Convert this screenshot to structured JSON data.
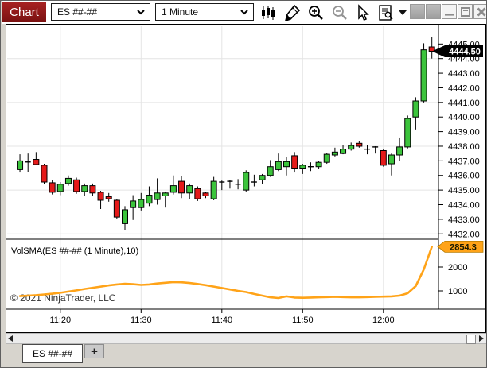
{
  "window": {
    "title_tab": "Chart"
  },
  "toolbar": {
    "instrument": "ES ##-##",
    "interval": "1 Minute",
    "icons": [
      "chart-style-icon",
      "draw-pencil-icon",
      "zoom-in-icon",
      "zoom-out-icon",
      "cursor-icon",
      "data-series-icon",
      "dropdown-caret-icon"
    ],
    "window_buttons": [
      "instrument-link-button",
      "interval-link-button",
      "minimize-button",
      "restore-button",
      "close-button"
    ]
  },
  "tabs": {
    "instrument_tab": "ES ##-##",
    "add_tab": "+"
  },
  "chart_data": {
    "type": "candlestick",
    "watermark": "© 2021 NinjaTrader, LLC",
    "x_axis": {
      "ticks": [
        {
          "label": "11:20",
          "bar": 5
        },
        {
          "label": "11:30",
          "bar": 15
        },
        {
          "label": "11:40",
          "bar": 25
        },
        {
          "label": "11:50",
          "bar": 35
        },
        {
          "label": "12:00",
          "bar": 45
        }
      ]
    },
    "panels": [
      {
        "id": "price",
        "kind": "candlestick",
        "up_color": "#3CC43C",
        "down_color": "#E51A1A",
        "current_price": 4444.5,
        "current_price_label": "4444.50",
        "y_axis": {
          "labels": [
            "4445.00",
            "4444.00",
            "4443.00",
            "4442.00",
            "4441.00",
            "4440.00",
            "4439.00",
            "4438.00",
            "4437.00",
            "4436.00",
            "4435.00",
            "4434.00",
            "4433.00",
            "4432.00"
          ],
          "grid_prices": [
            4444,
            4441,
            4438,
            4435,
            4432
          ]
        },
        "candles": [
          [
            4436.4,
            4437.45,
            4436.2,
            4437.0
          ],
          [
            4436.95,
            4437.5,
            4436.25,
            4436.9
          ],
          [
            4437.1,
            4437.6,
            4436.7,
            4436.75
          ],
          [
            4436.7,
            4436.8,
            4435.4,
            4435.55
          ],
          [
            4435.5,
            4435.7,
            4434.7,
            4434.85
          ],
          [
            4434.9,
            4435.55,
            4434.65,
            4435.4
          ],
          [
            4435.45,
            4436.0,
            4435.3,
            4435.8
          ],
          [
            4435.7,
            4435.85,
            4434.75,
            4434.9
          ],
          [
            4434.9,
            4435.45,
            4434.6,
            4435.3
          ],
          [
            4435.3,
            4435.45,
            4434.6,
            4434.8
          ],
          [
            4434.85,
            4434.95,
            4433.7,
            4434.3
          ],
          [
            4434.55,
            4434.8,
            4434.2,
            4434.4
          ],
          [
            4434.3,
            4434.4,
            4433.0,
            4433.15
          ],
          [
            4432.7,
            4433.9,
            4432.25,
            4433.65
          ],
          [
            4433.8,
            4434.65,
            4432.95,
            4434.25
          ],
          [
            4433.8,
            4434.8,
            4433.6,
            4434.35
          ],
          [
            4434.1,
            4435.25,
            4433.9,
            4434.65
          ],
          [
            4434.35,
            4435.8,
            4434.0,
            4434.8
          ],
          [
            4434.6,
            4434.9,
            4433.8,
            4434.8
          ],
          [
            4434.85,
            4436.0,
            4434.7,
            4435.3
          ],
          [
            4435.6,
            4435.95,
            4434.45,
            4434.8
          ],
          [
            4434.8,
            4435.45,
            4434.4,
            4435.3
          ],
          [
            4435.1,
            4435.25,
            4434.25,
            4434.4
          ],
          [
            4434.8,
            4434.9,
            4434.45,
            4434.6
          ],
          [
            4434.4,
            4435.9,
            4434.3,
            4435.6
          ],
          [
            4435.55,
            4435.65,
            4435.0,
            4435.55
          ],
          [
            4435.6,
            4435.7,
            4435.1,
            4435.6
          ],
          [
            4435.4,
            4435.75,
            4435.05,
            4435.4
          ],
          [
            4435.0,
            4436.35,
            4434.9,
            4436.2
          ],
          [
            4435.55,
            4436.05,
            4435.25,
            4435.55
          ],
          [
            4435.7,
            4436.1,
            4435.4,
            4436.0
          ],
          [
            4436.0,
            4437.05,
            4435.9,
            4436.6
          ],
          [
            4436.4,
            4437.5,
            4436.3,
            4436.95
          ],
          [
            4436.6,
            4437.25,
            4436.0,
            4436.95
          ],
          [
            4437.35,
            4437.6,
            4436.2,
            4436.5
          ],
          [
            4436.5,
            4436.8,
            4436.1,
            4436.7
          ],
          [
            4436.6,
            4436.9,
            4436.3,
            4436.6
          ],
          [
            4436.6,
            4437.0,
            4436.45,
            4436.9
          ],
          [
            4436.9,
            4437.55,
            4436.8,
            4437.45
          ],
          [
            4437.4,
            4437.9,
            4437.3,
            4437.6
          ],
          [
            4437.5,
            4438.1,
            4437.45,
            4437.8
          ],
          [
            4437.8,
            4438.25,
            4437.7,
            4438.05
          ],
          [
            4438.2,
            4438.35,
            4437.9,
            4438.0
          ],
          [
            4437.8,
            4438.1,
            4437.45,
            4437.8
          ],
          [
            4437.95,
            4438.0,
            4437.5,
            4437.95
          ],
          [
            4437.7,
            4437.8,
            4436.6,
            4436.7
          ],
          [
            4436.8,
            4437.5,
            4436.0,
            4437.4
          ],
          [
            4437.4,
            4438.6,
            4437.0,
            4437.95
          ],
          [
            4437.95,
            4440.1,
            4437.85,
            4439.9
          ],
          [
            4440.0,
            4441.35,
            4439.15,
            4441.1
          ],
          [
            4441.1,
            4445.05,
            4441.0,
            4444.6
          ],
          [
            4444.8,
            4445.5,
            4444.0,
            4444.5
          ]
        ]
      },
      {
        "id": "volsma",
        "kind": "line",
        "label": "VolSMA(ES ##-## (1 Minute),10)",
        "color": "#FFA318",
        "current_value": 2854.3,
        "current_value_label": "2854.3",
        "y_axis": {
          "labels": [
            "2000",
            "1000"
          ],
          "values": [
            2000,
            1000
          ]
        },
        "values": [
          780,
          800,
          820,
          850,
          880,
          920,
          970,
          1020,
          1080,
          1130,
          1180,
          1230,
          1270,
          1300,
          1280,
          1250,
          1270,
          1310,
          1340,
          1370,
          1360,
          1330,
          1290,
          1240,
          1180,
          1120,
          1060,
          1000,
          950,
          870,
          800,
          730,
          700,
          770,
          720,
          710,
          720,
          730,
          740,
          750,
          740,
          730,
          730,
          740,
          750,
          760,
          770,
          800,
          900,
          1200,
          1900,
          2854.3
        ]
      }
    ]
  }
}
